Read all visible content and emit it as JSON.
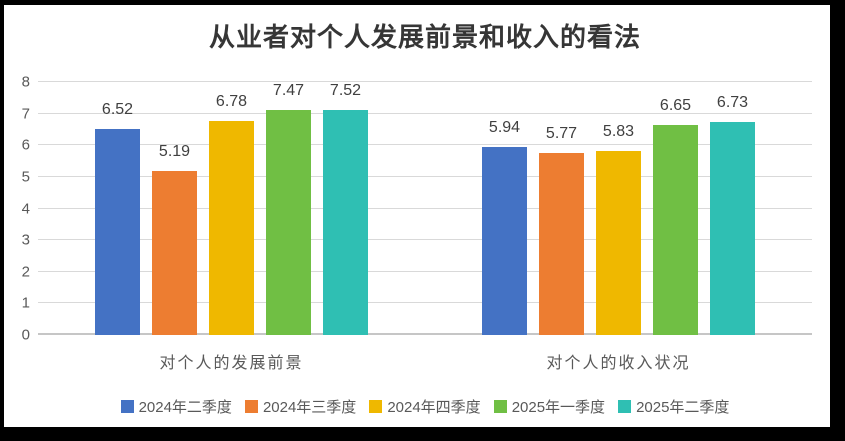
{
  "title": "从业者对个人发展前景和收入的看法",
  "chart_data": {
    "type": "bar",
    "title": "从业者对个人发展前景和收入的看法",
    "categories": [
      "对个人的发展前景",
      "对个人的收入状况"
    ],
    "series": [
      {
        "name": "2024年二季度",
        "color": "#4472C4",
        "values": [
          6.52,
          5.94
        ]
      },
      {
        "name": "2024年三季度",
        "color": "#ED7D31",
        "values": [
          5.19,
          5.77
        ]
      },
      {
        "name": "2024年四季度",
        "color": "#EFB800",
        "values": [
          6.78,
          5.83
        ]
      },
      {
        "name": "2025年一季度",
        "color": "#70BF44",
        "values": [
          7.47,
          6.65
        ]
      },
      {
        "name": "2025年二季度",
        "color": "#2FBFB3",
        "values": [
          7.52,
          6.73
        ]
      }
    ],
    "ylim": [
      0,
      8
    ],
    "ytick_step": 1,
    "yticks": [
      0,
      1,
      2,
      3,
      4,
      5,
      6,
      7,
      8
    ],
    "grid": true,
    "gridline_color": "#D9D9D9",
    "axis_line_color": "#C6C6C6",
    "value_labels": true,
    "value_label_decimals": 2,
    "legend_position": "bottom"
  },
  "style": {
    "title_color": "#363636",
    "axis_text_color": "#595959",
    "value_label_color": "#404040",
    "background": "#FFFFFF",
    "outer_border": "#000000"
  }
}
